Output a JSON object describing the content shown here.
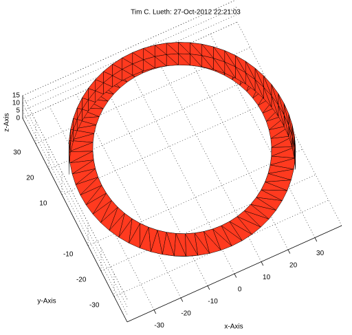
{
  "chart_data": {
    "type": "ring3d",
    "title": "Tim C. Lueth: 27-Oct-2012 22:21:03",
    "x_label": "x-Axis",
    "y_label": "y-Axis",
    "z_label": "z-Axis",
    "ring": {
      "outer_radius": 38,
      "inner_radius": 30,
      "height": 15
    },
    "color": "#ff3a1f",
    "xlim": [
      -40,
      40
    ],
    "ylim": [
      -40,
      40
    ],
    "zlim": [
      0,
      15
    ],
    "xticks": [
      -30,
      -20,
      -10,
      0,
      10,
      20,
      30
    ],
    "yticks": [
      -30,
      -20,
      -10,
      10,
      20,
      30
    ],
    "zticks": [
      0,
      5,
      10,
      15
    ],
    "grid": true
  }
}
